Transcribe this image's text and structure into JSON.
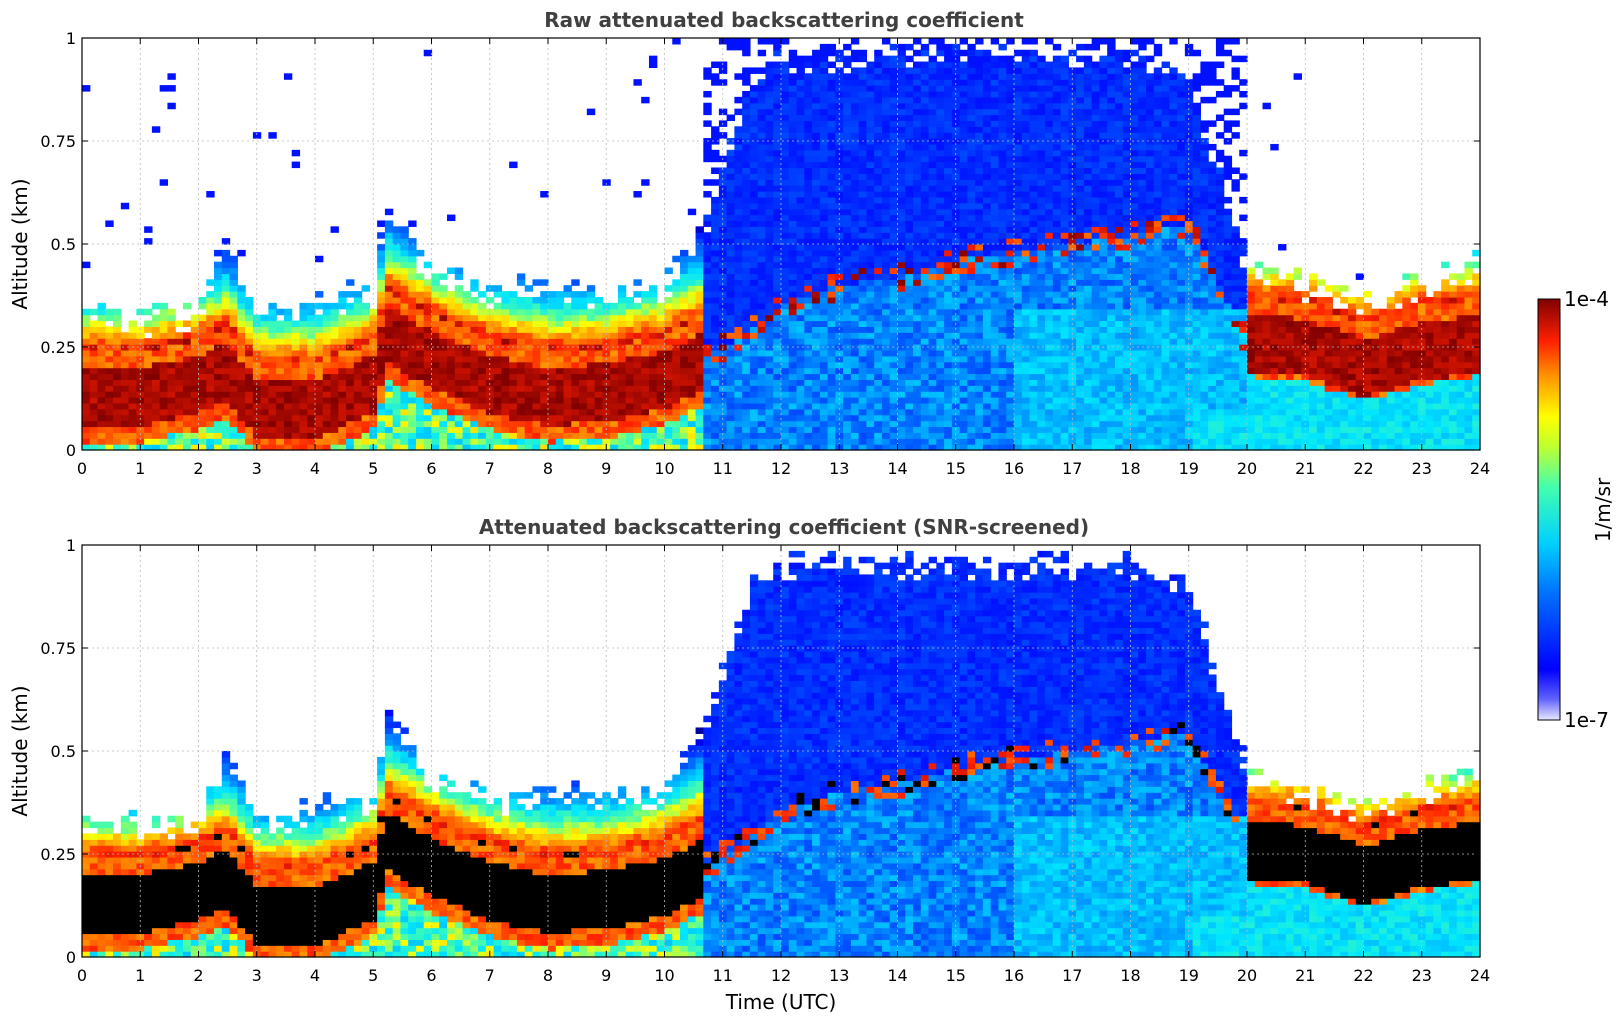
{
  "chart_data": [
    {
      "type": "heatmap",
      "title": "Raw attenuated backscattering coefficient",
      "xlabel": "",
      "ylabel": "Altitude (km)",
      "xlim": [
        0,
        24
      ],
      "ylim": [
        0,
        1
      ],
      "xticks": [
        "0",
        "1",
        "2",
        "3",
        "4",
        "5",
        "6",
        "7",
        "8",
        "9",
        "10",
        "11",
        "12",
        "13",
        "14",
        "15",
        "16",
        "17",
        "18",
        "19",
        "20",
        "21",
        "22",
        "23",
        "24"
      ],
      "yticks": [
        "0",
        "0.25",
        "0.5",
        "0.75",
        "1"
      ],
      "grid": true,
      "screened": false
    },
    {
      "type": "heatmap",
      "title": "Attenuated backscattering coefficient (SNR-screened)",
      "xlabel": "Time (UTC)",
      "ylabel": "Altitude (km)",
      "xlim": [
        0,
        24
      ],
      "ylim": [
        0,
        1
      ],
      "xticks": [
        "0",
        "1",
        "2",
        "3",
        "4",
        "5",
        "6",
        "7",
        "8",
        "9",
        "10",
        "11",
        "12",
        "13",
        "14",
        "15",
        "16",
        "17",
        "18",
        "19",
        "20",
        "21",
        "22",
        "23",
        "24"
      ],
      "yticks": [
        "0",
        "0.25",
        "0.5",
        "0.75",
        "1"
      ],
      "grid": true,
      "screened": true
    }
  ],
  "colorbar": {
    "label": "1/m/sr",
    "max_label": "1e-4",
    "min_label": "1e-7",
    "scale": "log",
    "colormap": "jet"
  },
  "profile": {
    "t": [
      0,
      0.75,
      1,
      2,
      2.5,
      3,
      4,
      5,
      5.25,
      6,
      7,
      8,
      9,
      10,
      10.7,
      11.5,
      12,
      13,
      14,
      15,
      16,
      17,
      18,
      19,
      20,
      21,
      22,
      23,
      24
    ],
    "layer_km": [
      0.13,
      0.13,
      0.13,
      0.16,
      0.19,
      0.1,
      0.1,
      0.16,
      0.28,
      0.22,
      0.16,
      0.13,
      0.14,
      0.17,
      0.22,
      0.3,
      0.35,
      0.4,
      0.42,
      0.46,
      0.48,
      0.5,
      0.52,
      0.55,
      0.26,
      0.25,
      0.2,
      0.24,
      0.26
    ],
    "top_km": [
      0.33,
      0.33,
      0.31,
      0.33,
      0.5,
      0.32,
      0.36,
      0.38,
      0.6,
      0.42,
      0.38,
      0.4,
      0.38,
      0.4,
      0.55,
      0.9,
      0.95,
      0.95,
      0.95,
      0.95,
      0.95,
      0.95,
      0.95,
      0.9,
      0.45,
      0.4,
      0.35,
      0.4,
      0.45
    ]
  }
}
